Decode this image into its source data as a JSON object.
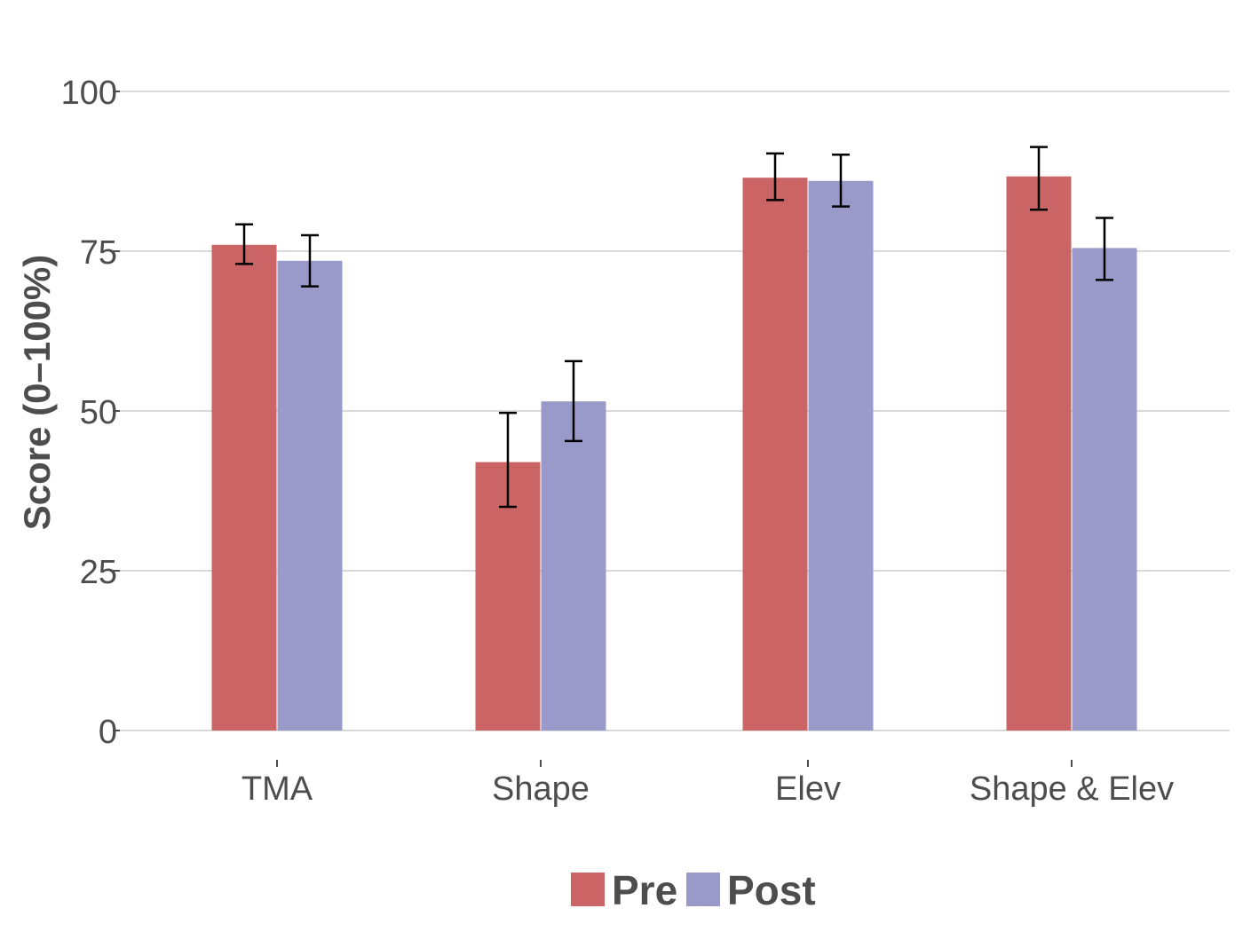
{
  "chart_data": {
    "type": "bar",
    "categories": [
      "TMA",
      "Shape",
      "Elev",
      "Shape & Elev"
    ],
    "series": [
      {
        "name": "Pre",
        "color": "#cb6464",
        "values": [
          76,
          42,
          86.5,
          86.7
        ],
        "error_low": [
          73,
          35,
          83,
          81.5
        ],
        "error_high": [
          79.2,
          49.7,
          90.3,
          91.3
        ]
      },
      {
        "name": "Post",
        "color": "#9a9aca",
        "values": [
          73.5,
          51.5,
          86,
          75.5
        ],
        "error_low": [
          69.5,
          45.3,
          82,
          70.5
        ],
        "error_high": [
          77.5,
          57.8,
          90.1,
          80.2
        ]
      }
    ],
    "ylabel": "Score (0–100%)",
    "xlabel": "",
    "ylim": [
      0,
      100
    ],
    "yticks": [
      "0",
      "25",
      "50",
      "75",
      "100"
    ],
    "legend_position": "bottom",
    "grid": true
  }
}
